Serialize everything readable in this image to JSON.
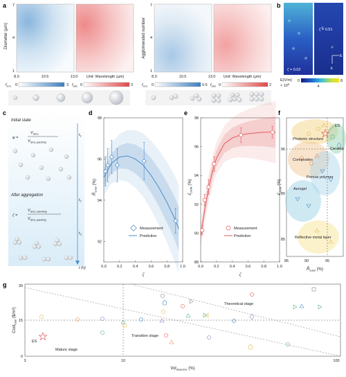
{
  "panels": {
    "a": {
      "label": "a",
      "left": {
        "ylabel": "Diameter (μm)",
        "yticks": [
          "1",
          "4",
          "7"
        ],
        "xticks": [
          "8.0",
          "10.5",
          "13.0"
        ],
        "unit_label": "Unit: Wavelength (μm)",
        "sca_label": "f",
        "sca_sub": "sca",
        "sca_range": [
          "0",
          "3"
        ],
        "abs_label": "f",
        "abs_sub": "abs",
        "abs_range": [
          "0",
          "3"
        ]
      },
      "right": {
        "ylabel": "Agglomerated number",
        "yticks": [
          "1",
          "4",
          "7"
        ],
        "xticks": [
          "8.0",
          "10.5",
          "13.0"
        ],
        "unit_label": "Unit: Wavelength (μm)",
        "sca_label": "f",
        "sca_sub": "sca",
        "sca_range": [
          "0",
          "0.5"
        ],
        "abs_label": "f",
        "abs_sub": "abs",
        "abs_range": [
          "0",
          "2"
        ]
      }
    },
    "b": {
      "label": "b",
      "zeta1": "ζ = 0.02",
      "zeta2": "ζ = 0.51",
      "field_label": "E(V/m)",
      "field_scale": "× 10",
      "field_exp": "5",
      "cbar_min": "0",
      "cbar_ticks": [
        "0",
        "4",
        "8"
      ],
      "arrow_e": "E",
      "arrow_k": "k"
    },
    "c": {
      "label": "c",
      "initial": "Initial state",
      "after": "After aggregation",
      "phi_eq": "φ =",
      "zeta_eq": "ζ =",
      "v_sio2": "V",
      "sio2": "SiO",
      "packing": "SiO packing",
      "stacking": "SiO stacking",
      "t1": "t",
      "t2": "t",
      "t3": "t",
      "th": "t (h)"
    },
    "d": {
      "label": "d",
      "ylabel": "R̄",
      "ylabel_sub": "solar",
      "ylabel_unit": " (%)",
      "xlabel": "ζ",
      "yticks": [
        "92",
        "94",
        "96",
        "98"
      ],
      "xticks": [
        "0.0",
        "0.2",
        "0.4",
        "0.6",
        "0.8",
        "1.0"
      ],
      "legend_measure": "Measurement",
      "legend_predict": "Prediction"
    },
    "e": {
      "label": "e",
      "ylabel": "ε̄",
      "ylabel_sub": "LWIR",
      "ylabel_unit": " (%)",
      "xlabel": "ζ",
      "yticks": [
        "88",
        "90",
        "92",
        "94",
        "96",
        "98"
      ],
      "xticks": [
        "0.0",
        "0.2",
        "0.4",
        "0.6",
        "0.8",
        "1.0"
      ],
      "legend_measure": "Measurement",
      "legend_predict": "Prediction"
    },
    "f": {
      "label": "f",
      "ylabel": "ε̄",
      "ylabel_sub": "LWIR",
      "ylabel_unit": " (%)",
      "xlabel": "R̄",
      "xlabel_sub": "solar",
      "xlabel_unit": " (%)",
      "yticks": [
        "85",
        "90",
        "95"
      ],
      "xticks": [
        "85",
        "90",
        "95"
      ],
      "groups": [
        "Photonic structure",
        "Ceramic",
        "Composites",
        "Porous polymer",
        "Aerogel",
        "Reflective metal layer"
      ],
      "es": "ES"
    },
    "g": {
      "label": "g",
      "ylabel": "Cost",
      "ylabel_sub": "total",
      "ylabel_unit": " ($/m²)",
      "xlabel": "Vol",
      "xlabel_sub": "dielectric",
      "xlabel_unit": " (%)",
      "yticks": [
        "0",
        "15",
        "30"
      ],
      "xticks": [
        "3",
        "10",
        "100"
      ],
      "stages": [
        "Theoretical stage",
        "Transition stage",
        "Mature stage"
      ],
      "es": "ES"
    }
  },
  "chart_data": [
    {
      "panel": "d",
      "type": "scatter",
      "xlabel": "ζ",
      "ylabel": "R̄solar (%)",
      "xlim": [
        0,
        1.0
      ],
      "ylim": [
        91,
        98
      ],
      "series": [
        {
          "name": "Measurement",
          "x": [
            0.02,
            0.05,
            0.1,
            0.17,
            0.51,
            0.91
          ],
          "y": [
            95.4,
            95.7,
            96.1,
            95.7,
            95.9,
            93.0
          ],
          "err": [
            0.7,
            0.8,
            0.8,
            0.8,
            0.9,
            0.6
          ]
        },
        {
          "name": "Prediction",
          "x": [
            0.0,
            0.1,
            0.2,
            0.3,
            0.4,
            0.5,
            0.6,
            0.7,
            0.8,
            0.9,
            0.95
          ],
          "y": [
            95.1,
            95.8,
            96.1,
            96.15,
            96.0,
            95.7,
            95.2,
            94.6,
            93.9,
            93.1,
            92.6
          ]
        }
      ]
    },
    {
      "panel": "e",
      "type": "scatter",
      "xlabel": "ζ",
      "ylabel": "ε̄LWIR (%)",
      "xlim": [
        0,
        1.0
      ],
      "ylim": [
        88,
        98
      ],
      "series": [
        {
          "name": "Measurement",
          "x": [
            0.02,
            0.05,
            0.1,
            0.17,
            0.51,
            0.91
          ],
          "y": [
            90.2,
            92.3,
            93.2,
            94.8,
            96.8,
            97.0
          ],
          "err": [
            0.3,
            0.4,
            0.5,
            0.5,
            0.5,
            0.4
          ]
        },
        {
          "name": "Prediction",
          "x": [
            0.0,
            0.05,
            0.1,
            0.15,
            0.2,
            0.3,
            0.4,
            0.5,
            0.6,
            0.8,
            0.95
          ],
          "y": [
            89.8,
            91.6,
            93.1,
            94.3,
            95.2,
            96.2,
            96.6,
            96.8,
            96.9,
            97.0,
            97.0
          ]
        }
      ]
    }
  ],
  "colors": {
    "blue": "#4a8cc6",
    "red": "#e25b5b",
    "green": "#5ab38a",
    "yellow": "#e0b84a",
    "purple": "#9b7bc4",
    "orange": "#e8935a",
    "gray": "#888888"
  }
}
